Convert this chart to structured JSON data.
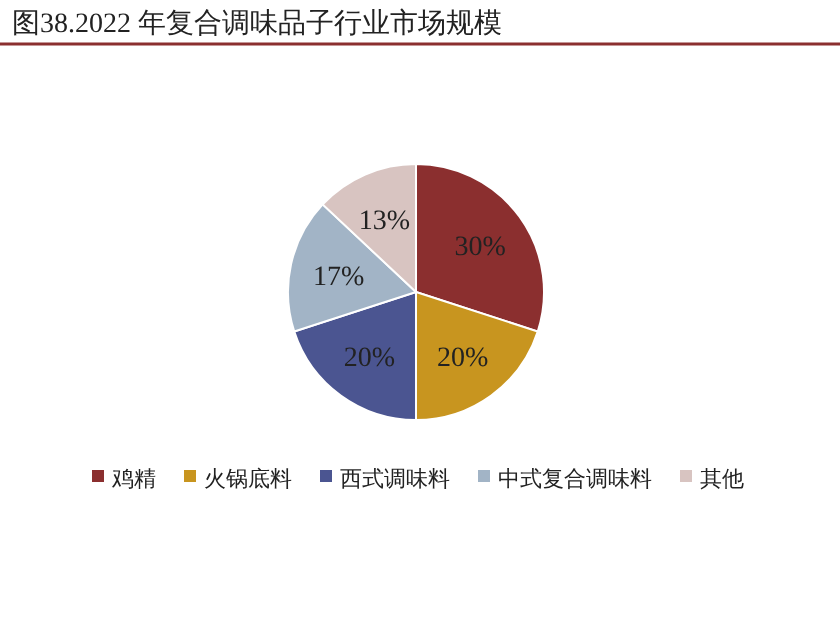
{
  "chart_data": {
    "type": "pie",
    "title": "图38.2022 年复合调味品子行业市场规模",
    "categories": [
      "鸡精",
      "火锅底料",
      "西式调味料",
      "中式复合调味料",
      "其他"
    ],
    "values": [
      30,
      20,
      20,
      17,
      13
    ],
    "colors": [
      "#8b2f2f",
      "#c8951f",
      "#4b5591",
      "#a2b4c6",
      "#d8c4c1"
    ],
    "value_labels": [
      "30%",
      "20%",
      "20%",
      "17%",
      "13%"
    ],
    "legend": "bottom"
  }
}
